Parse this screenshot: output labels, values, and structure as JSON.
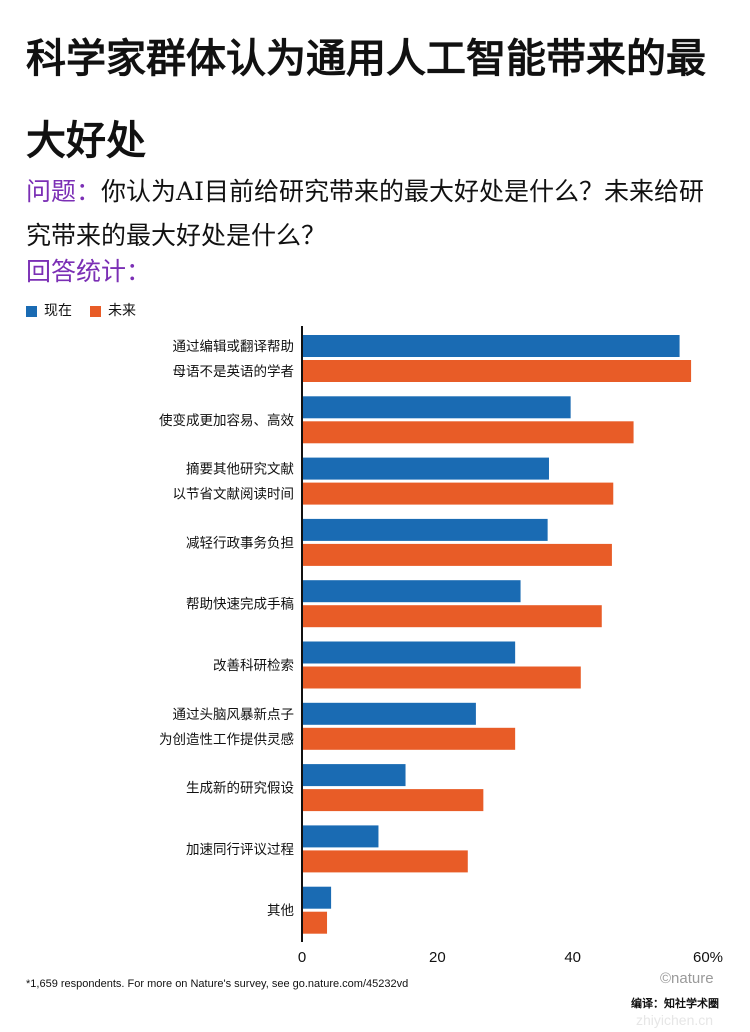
{
  "title": "科学家群体认为通用人工智能带来的最大好处",
  "question": {
    "label": "问题：",
    "text": "你认为AI目前给研究带来的最大好处是什么？未来给研究带来的最大好处是什么？"
  },
  "answer_label": "回答统计：",
  "colors": {
    "now": "#1a6bb3",
    "future": "#e85c27",
    "title_accent": "#7b2fb5"
  },
  "footnote": "*1,659 respondents. For more on Nature's survey, see go.nature.com/45232vd",
  "brand": "©nature",
  "credit": "编译：知社学术圈",
  "watermark": "zhiyichen.cn",
  "chart_data": {
    "type": "bar",
    "orientation": "horizontal",
    "legend": [
      "现在",
      "未来"
    ],
    "legend_position": "top-left",
    "categories": [
      [
        "通过编辑或翻译帮助",
        "母语不是英语的学者"
      ],
      [
        "使变成更加容易、高效"
      ],
      [
        "摘要其他研究文献",
        "以节省文献阅读时间"
      ],
      [
        "减轻行政事务负担"
      ],
      [
        "帮助快速完成手稿"
      ],
      [
        "改善科研检索"
      ],
      [
        "通过头脑风暴新点子",
        "为创造性工作提供灵感"
      ],
      [
        "生成新的研究假设"
      ],
      [
        "加速同行评议过程"
      ],
      [
        "其他"
      ]
    ],
    "series": [
      {
        "name": "现在",
        "values": [
          55.8,
          39.7,
          36.5,
          36.3,
          32.3,
          31.5,
          25.7,
          15.3,
          11.3,
          4.3
        ]
      },
      {
        "name": "未来",
        "values": [
          57.5,
          49.0,
          46.0,
          45.8,
          44.3,
          41.2,
          31.5,
          26.8,
          24.5,
          3.7
        ]
      }
    ],
    "xlim": [
      0,
      60
    ],
    "xticks": [
      "0",
      "20",
      "40",
      "60%"
    ],
    "grid": false
  }
}
